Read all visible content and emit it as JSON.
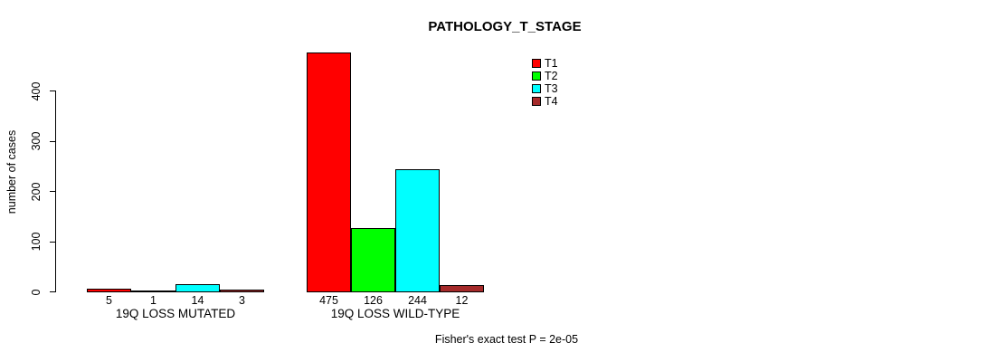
{
  "chart_data": {
    "type": "bar",
    "title": "PATHOLOGY_T_STAGE",
    "ylabel": "number of cases",
    "footnote": "Fisher's exact test P = 2e-05",
    "grid": false,
    "legend_position": "top-right-inside",
    "yticks": [
      0,
      100,
      200,
      300,
      400
    ],
    "ylim": [
      0,
      475
    ],
    "categories": [
      "19Q LOSS MUTATED",
      "19Q LOSS WILD-TYPE"
    ],
    "series": [
      {
        "name": "T1",
        "color": "#FF0000",
        "values": [
          5,
          475
        ]
      },
      {
        "name": "T2",
        "color": "#00FF00",
        "values": [
          1,
          126
        ]
      },
      {
        "name": "T3",
        "color": "#00FFFF",
        "values": [
          14,
          244
        ]
      },
      {
        "name": "T4",
        "color": "#A52A2A",
        "values": [
          3,
          12
        ]
      }
    ],
    "bar_value_labels": [
      [
        5,
        1,
        14,
        3
      ],
      [
        475,
        126,
        244,
        12
      ]
    ],
    "colors": {
      "background": "#FFFFFF",
      "axis": "#000000",
      "text": "#000000"
    }
  }
}
